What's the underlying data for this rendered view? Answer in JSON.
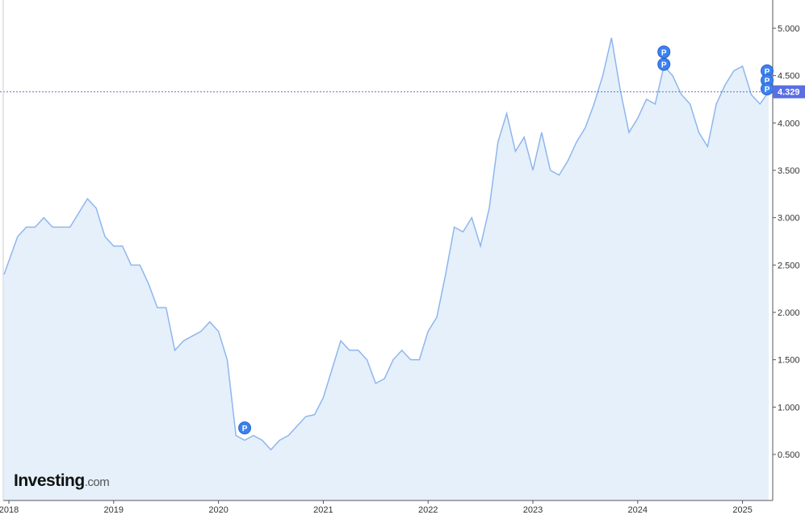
{
  "logo": {
    "main": "Investing",
    "suffix": ".com"
  },
  "chart_data": {
    "type": "area",
    "ylim": [
      0.25,
      5.3
    ],
    "y_ticks": [
      "0.500",
      "1.000",
      "1.500",
      "2.000",
      "2.500",
      "3.000",
      "3.500",
      "4.000",
      "4.500",
      "5.000"
    ],
    "x_ticks": [
      "2018",
      "2019",
      "2020",
      "2021",
      "2022",
      "2023",
      "2024",
      "2025"
    ],
    "grid": false,
    "colors": {
      "line": "#8fb6ec",
      "fill": "#e5f0fb",
      "current": "#5a6fe0",
      "marker": "#3b82f0"
    },
    "current_value": "4.329",
    "x": [
      "2018-01",
      "2018-02",
      "2018-03",
      "2018-04",
      "2018-05",
      "2018-06",
      "2018-07",
      "2018-08",
      "2018-09",
      "2018-10",
      "2018-11",
      "2018-12",
      "2019-01",
      "2019-02",
      "2019-03",
      "2019-04",
      "2019-05",
      "2019-06",
      "2019-07",
      "2019-08",
      "2019-09",
      "2019-10",
      "2019-11",
      "2019-12",
      "2020-01",
      "2020-02",
      "2020-03",
      "2020-04",
      "2020-05",
      "2020-06",
      "2020-07",
      "2020-08",
      "2020-09",
      "2020-10",
      "2020-11",
      "2020-12",
      "2021-01",
      "2021-02",
      "2021-03",
      "2021-04",
      "2021-05",
      "2021-06",
      "2021-07",
      "2021-08",
      "2021-09",
      "2021-10",
      "2021-11",
      "2021-12",
      "2022-01",
      "2022-02",
      "2022-03",
      "2022-04",
      "2022-05",
      "2022-06",
      "2022-07",
      "2022-08",
      "2022-09",
      "2022-10",
      "2022-11",
      "2022-12",
      "2023-01",
      "2023-02",
      "2023-03",
      "2023-04",
      "2023-05",
      "2023-06",
      "2023-07",
      "2023-08",
      "2023-09",
      "2023-10",
      "2023-11",
      "2023-12",
      "2024-01",
      "2024-02",
      "2024-03",
      "2024-04",
      "2024-05",
      "2024-06",
      "2024-07",
      "2024-08",
      "2024-09",
      "2024-10",
      "2024-11",
      "2024-12",
      "2025-01",
      "2025-02",
      "2025-03",
      "2025-04"
    ],
    "values": [
      2.4,
      2.8,
      2.9,
      2.9,
      3.0,
      2.9,
      2.9,
      2.9,
      3.05,
      3.2,
      3.1,
      2.8,
      2.7,
      2.7,
      2.5,
      2.5,
      2.3,
      2.05,
      2.05,
      1.6,
      1.7,
      1.75,
      1.8,
      1.9,
      1.8,
      1.5,
      0.7,
      0.65,
      0.7,
      0.65,
      0.55,
      0.65,
      0.7,
      0.8,
      0.9,
      0.92,
      1.1,
      1.4,
      1.7,
      1.6,
      1.6,
      1.5,
      1.25,
      1.3,
      1.5,
      1.6,
      1.5,
      1.5,
      1.8,
      1.95,
      2.4,
      2.9,
      2.85,
      3.0,
      2.7,
      3.1,
      3.8,
      4.1,
      3.7,
      3.85,
      3.5,
      3.9,
      3.5,
      3.45,
      3.6,
      3.8,
      3.95,
      4.2,
      4.5,
      4.9,
      4.35,
      3.9,
      4.05,
      4.25,
      4.2,
      4.6,
      4.5,
      4.3,
      4.2,
      3.9,
      3.75,
      4.2,
      4.4,
      4.55,
      4.6,
      4.3,
      4.2,
      4.329
    ],
    "markers": [
      {
        "label": "P",
        "x": "2020-04",
        "y": 0.78
      },
      {
        "label": "P",
        "x": "2024-04",
        "y": 4.75
      },
      {
        "label": "P",
        "x": "2024-04",
        "y": 4.62
      },
      {
        "label": "P",
        "x": "2025-04",
        "y": 4.55
      },
      {
        "label": "P",
        "x": "2025-04",
        "y": 4.45
      },
      {
        "label": "P",
        "x": "2025-04",
        "y": 4.36
      }
    ]
  }
}
